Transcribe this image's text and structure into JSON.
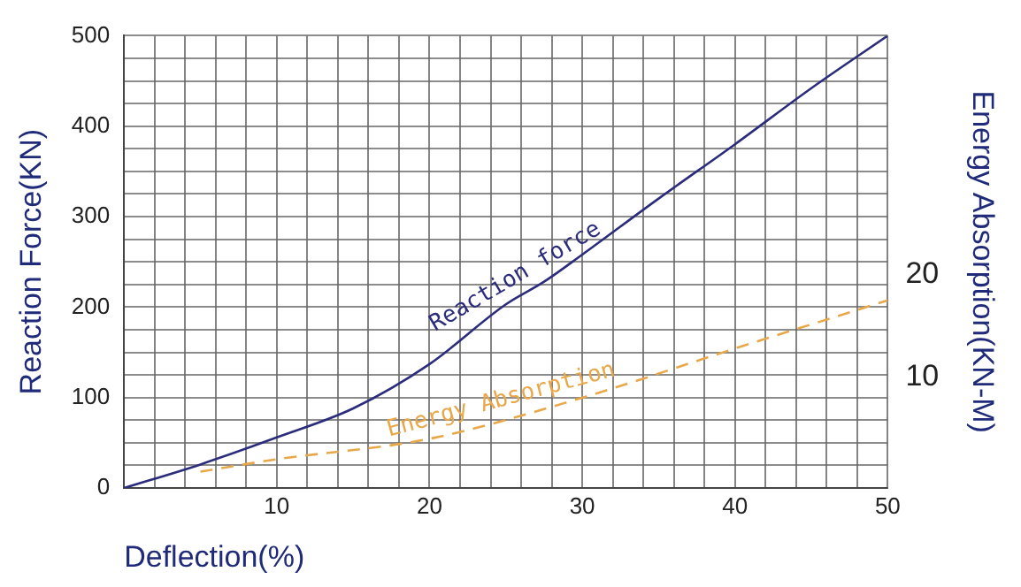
{
  "chart_data": {
    "type": "line",
    "xlabel": "Deflection(%)",
    "ylabel": "Reaction Force(KN)",
    "y2label": "Energy Absorption(KN-M)",
    "xlim": [
      0,
      50
    ],
    "xticks": [
      {
        "value": 0,
        "label": null
      },
      {
        "value": 2,
        "label": null
      },
      {
        "value": 4,
        "label": null
      },
      {
        "value": 6,
        "label": null
      },
      {
        "value": 8,
        "label": null
      },
      10,
      {
        "value": 12,
        "label": null
      },
      {
        "value": 14,
        "label": null
      },
      {
        "value": 16,
        "label": null
      },
      {
        "value": 18,
        "label": null
      },
      20,
      {
        "value": 22,
        "label": null
      },
      {
        "value": 24,
        "label": null
      },
      {
        "value": 26,
        "label": null
      },
      {
        "value": 28,
        "label": null
      },
      30,
      {
        "value": 32,
        "label": null
      },
      {
        "value": 34,
        "label": null
      },
      {
        "value": 36,
        "label": null
      },
      {
        "value": 38,
        "label": null
      },
      40,
      {
        "value": 42,
        "label": null
      },
      {
        "value": 44,
        "label": null
      },
      {
        "value": 46,
        "label": null
      },
      {
        "value": 48,
        "label": null
      },
      50
    ],
    "ylim": [
      0,
      500
    ],
    "yticks": [
      0,
      {
        "value": 25,
        "label": null
      },
      {
        "value": 50,
        "label": null
      },
      {
        "value": 75,
        "label": null
      },
      100,
      {
        "value": 125,
        "label": null
      },
      {
        "value": 150,
        "label": null
      },
      {
        "value": 175,
        "label": null
      },
      200,
      {
        "value": 225,
        "label": null
      },
      {
        "value": 250,
        "label": null
      },
      {
        "value": 275,
        "label": null
      },
      300,
      {
        "value": 325,
        "label": null
      },
      {
        "value": 350,
        "label": null
      },
      {
        "value": 375,
        "label": null
      },
      400,
      {
        "value": 425,
        "label": null
      },
      {
        "value": 450,
        "label": null
      },
      {
        "value": 475,
        "label": null
      },
      500
    ],
    "y2lim": [
      -0.8,
      43.3
    ],
    "y2ticks": [
      10,
      20
    ],
    "grid": true,
    "legend": false,
    "marker": "none",
    "series": [
      {
        "name": "Reaction force",
        "color": "#2b2c7c",
        "x": [
          0,
          5,
          10,
          15,
          20,
          25,
          27.5,
          30,
          35,
          40,
          45,
          50
        ],
        "values": [
          0,
          26,
          56,
          88,
          137,
          203,
          228,
          258,
          320,
          380,
          442,
          500
        ],
        "line_style": "solid"
      },
      {
        "name": "Energy Absorption",
        "color": "#e8a84a",
        "axis": "y2",
        "x": [
          5,
          10,
          20,
          30,
          40,
          50
        ],
        "values": [
          0.8,
          2,
          4,
          8,
          12.8,
          17.5
        ],
        "line_style": "dashed"
      }
    ]
  }
}
